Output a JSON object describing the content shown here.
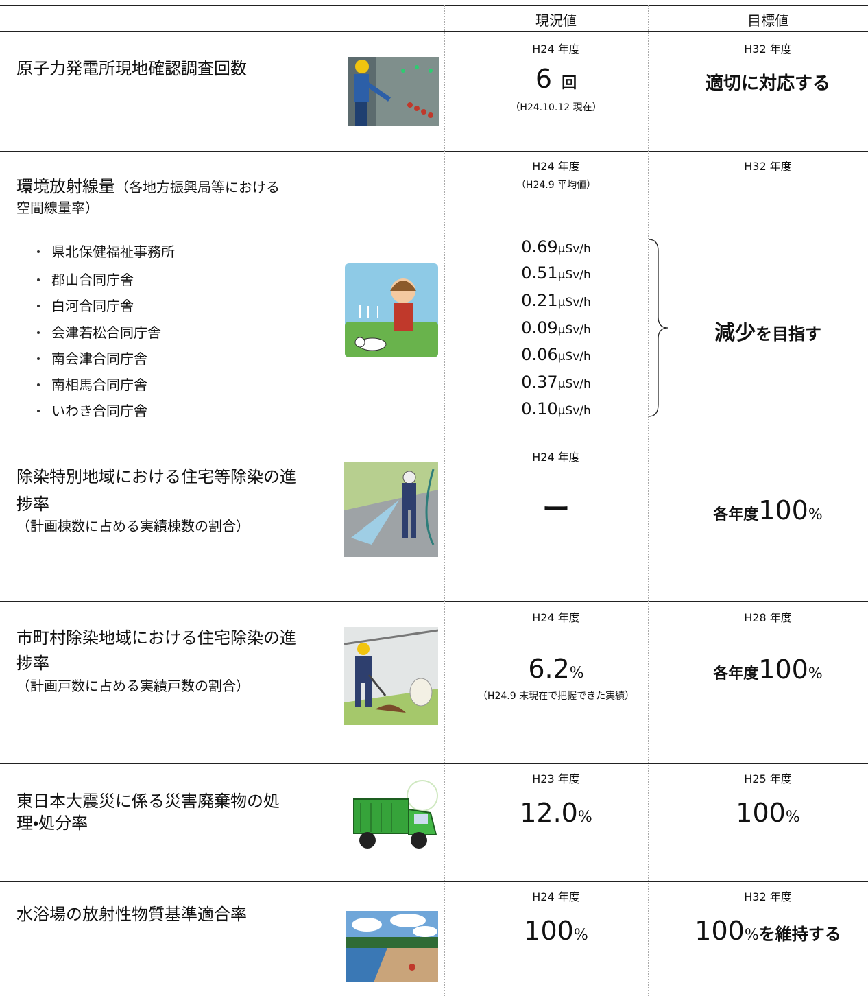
{
  "header": {
    "current": "現況値",
    "target": "目標値"
  },
  "rows": [
    {
      "label": [
        "原子力発電所現地確認調査回数"
      ],
      "current": {
        "year": "H24 年度",
        "value": "6",
        "unit": "回",
        "note": "（H24.10.12 現在）"
      },
      "target": {
        "year": "H32 年度",
        "text": "適切に対応する"
      }
    },
    {
      "label": [
        "環境放射線量",
        "（各地方振興局等における",
        "空間線量率）"
      ],
      "current": {
        "year": "H24 年度",
        "note": "（H24.9 平均値）"
      },
      "sites": [
        {
          "name": "県北保健福祉事務所",
          "value": "0.69",
          "unit": "μSv/h"
        },
        {
          "name": "郡山合同庁舎",
          "value": "0.51",
          "unit": "μSv/h"
        },
        {
          "name": "白河合同庁舎",
          "value": "0.21",
          "unit": "μSv/h"
        },
        {
          "name": "会津若松合同庁舎",
          "value": "0.09",
          "unit": "μSv/h"
        },
        {
          "name": "南会津合同庁舎",
          "value": "0.06",
          "unit": "μSv/h"
        },
        {
          "name": "南相馬合同庁舎",
          "value": "0.37",
          "unit": "μSv/h"
        },
        {
          "name": "いわき合同庁舎",
          "value": "0.10",
          "unit": "μSv/h"
        }
      ],
      "target": {
        "year": "H32 年度",
        "text": "減少",
        "suffix": "を目指す"
      }
    },
    {
      "label": [
        "除染特別地域における住宅等除染の進",
        "捗率",
        "（計画棟数に占める実績棟数の割合）"
      ],
      "current": {
        "year": "H24 年度",
        "value": "ー"
      },
      "target": {
        "prefix": "各年度",
        "value": "100",
        "unit": "%"
      }
    },
    {
      "label": [
        "市町村除染地域における住宅除染の進",
        "捗率",
        "（計画戸数に占める実績戸数の割合）"
      ],
      "current": {
        "year": "H24 年度",
        "value": "6.2",
        "unit": "%",
        "note": "（H24.9 末現在で把握できた実績）"
      },
      "target": {
        "year": "H28 年度",
        "prefix": "各年度",
        "value": "100",
        "unit": "%"
      }
    },
    {
      "label": [
        "東日本大震災に係る災害廃棄物の処",
        "理・処分率"
      ],
      "current": {
        "year": "H23 年度",
        "value": "12.0",
        "unit": "%"
      },
      "target": {
        "year": "H25 年度",
        "value": "100",
        "unit": "%"
      }
    },
    {
      "label": [
        "水浴場の放射性物質基準適合率"
      ],
      "current": {
        "year": "H24 年度",
        "value": "100",
        "unit": "%"
      },
      "target": {
        "year": "H32 年度",
        "value": "100",
        "unit": "%",
        "suffix": "を維持する"
      }
    }
  ]
}
